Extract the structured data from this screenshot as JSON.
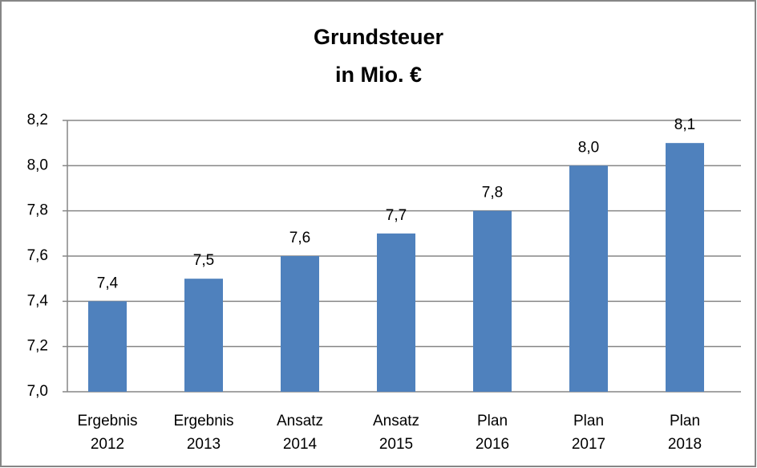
{
  "chart_data": {
    "type": "bar",
    "title": [
      "Grundsteuer",
      "in Mio. €"
    ],
    "categories": [
      [
        "Ergebnis",
        "2012"
      ],
      [
        "Ergebnis",
        "2013"
      ],
      [
        "Ansatz",
        "2014"
      ],
      [
        "Ansatz",
        "2015"
      ],
      [
        "Plan",
        "2016"
      ],
      [
        "Plan",
        "2017"
      ],
      [
        "Plan",
        "2018"
      ]
    ],
    "values": [
      7.4,
      7.5,
      7.6,
      7.7,
      7.8,
      8.0,
      8.1
    ],
    "value_labels": [
      "7,4",
      "7,5",
      "7,6",
      "7,7",
      "7,8",
      "8,0",
      "8,1"
    ],
    "color": "#4f81bd",
    "ylim": [
      7.0,
      8.2
    ],
    "yticks": [
      {
        "value": 7.0,
        "label": "7,0"
      },
      {
        "value": 7.2,
        "label": "7,2"
      },
      {
        "value": 7.4,
        "label": "7,4"
      },
      {
        "value": 7.6,
        "label": "7,6"
      },
      {
        "value": 7.8,
        "label": "7,8"
      },
      {
        "value": 8.0,
        "label": "8,0"
      },
      {
        "value": 8.2,
        "label": "8,2"
      }
    ],
    "grid": true
  }
}
